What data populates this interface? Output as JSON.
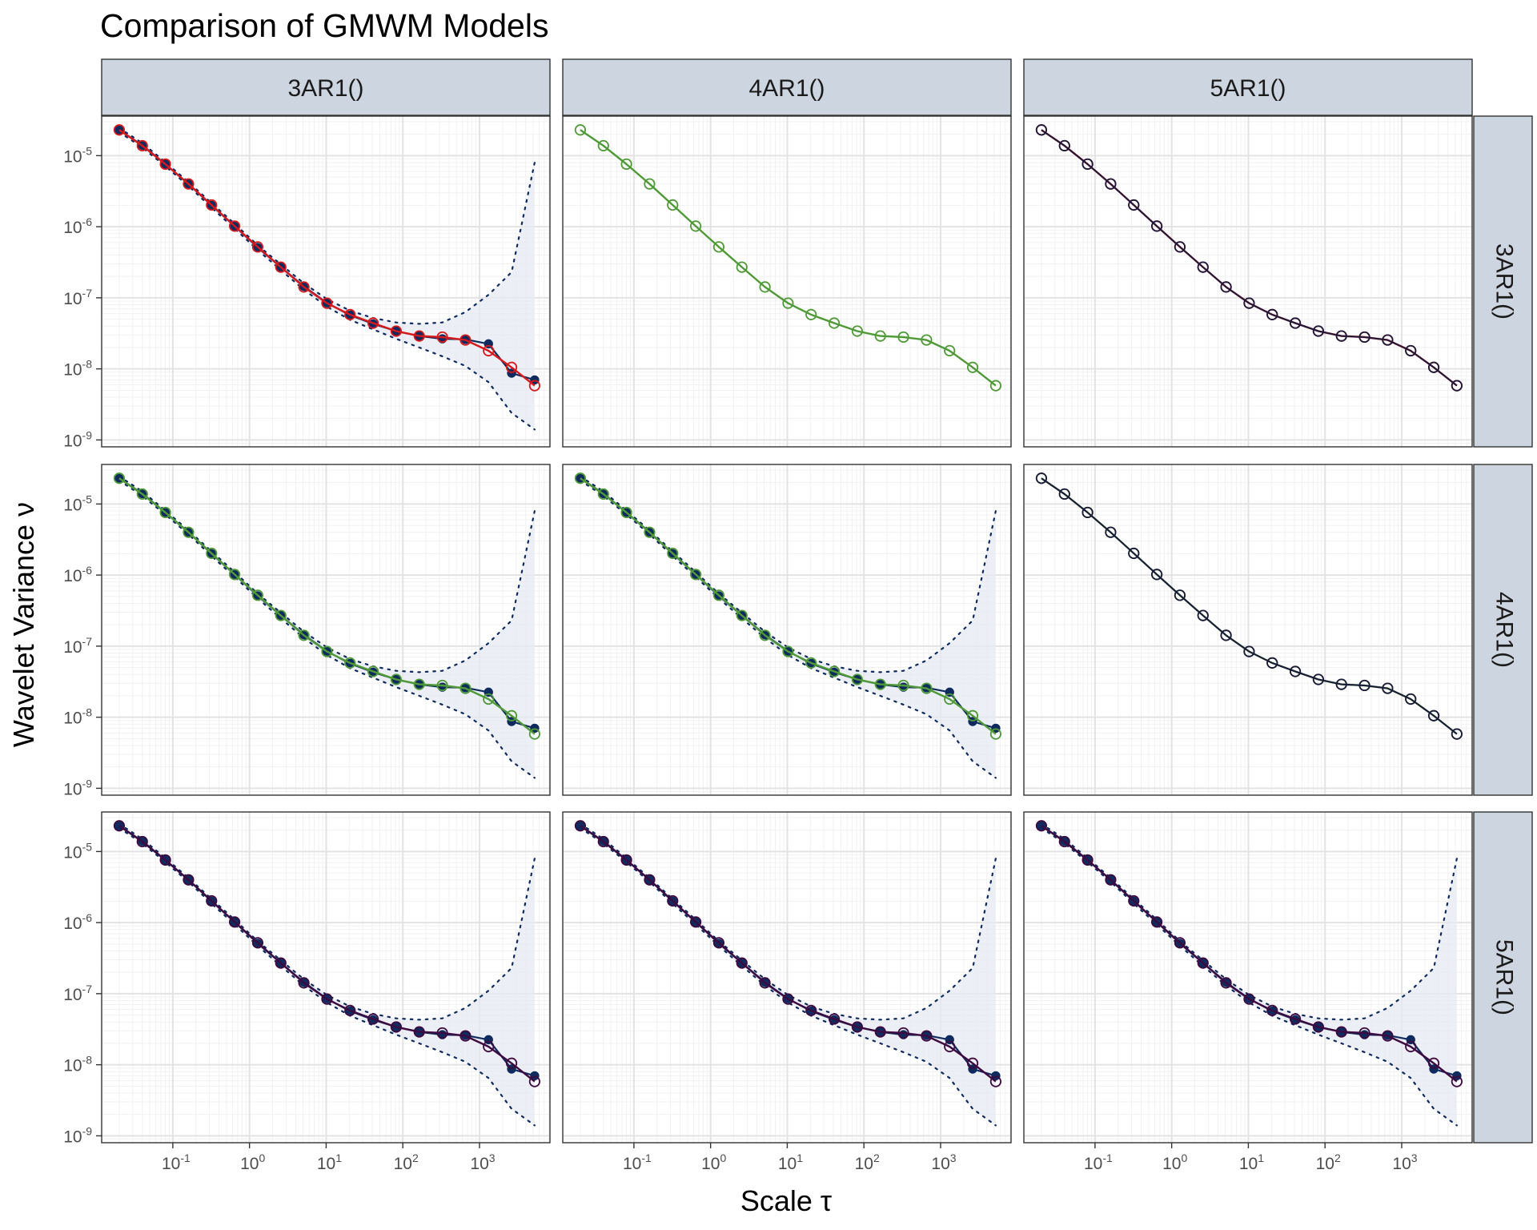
{
  "chart_data": {
    "type": "line",
    "title": "Comparison of GMWM Models",
    "xlabel": "Scale τ",
    "ylabel": "Wavelet Variance ν",
    "x_scale": "log10",
    "y_scale": "log10",
    "xlim": [
      0.0118,
      8300
    ],
    "ylim": [
      8e-10,
      3.6e-05
    ],
    "x_ticks": [
      0.1,
      1,
      10,
      100,
      1000
    ],
    "x_tick_labels": [
      {
        "base": "10",
        "exp": "-1"
      },
      {
        "base": "10",
        "exp": "0"
      },
      {
        "base": "10",
        "exp": "1"
      },
      {
        "base": "10",
        "exp": "2"
      },
      {
        "base": "10",
        "exp": "3"
      }
    ],
    "y_ticks": [
      1e-09,
      1e-08,
      1e-07,
      1e-06,
      1e-05
    ],
    "y_tick_labels": [
      {
        "base": "10",
        "exp": "-9"
      },
      {
        "base": "10",
        "exp": "-8"
      },
      {
        "base": "10",
        "exp": "-7"
      },
      {
        "base": "10",
        "exp": "-6"
      },
      {
        "base": "10",
        "exp": "-5"
      }
    ],
    "grid": true,
    "legend": "none",
    "column_labels": [
      "3AR1()",
      "4AR1()",
      "5AR1()"
    ],
    "row_labels": [
      "3AR1()",
      "4AR1()",
      "5AR1()"
    ],
    "scales": [
      0.02,
      0.04,
      0.08,
      0.16,
      0.32,
      0.64,
      1.28,
      2.56,
      5.12,
      10.24,
      20.48,
      40.96,
      81.92,
      163.84,
      327.68,
      655.36,
      1310.72,
      2621.44,
      5242.88
    ],
    "empirical_wv": [
      2.3e-05,
      1.4e-05,
      7.6e-06,
      4e-06,
      2e-06,
      1.02e-06,
      5.1e-07,
      2.7e-07,
      1.45e-07,
      8.5e-08,
      5.7e-08,
      4.3e-08,
      3.4e-08,
      2.9e-08,
      2.65e-08,
      2.6e-08,
      2.25e-08,
      8.7e-09,
      7e-09
    ],
    "ci_upper": [
      2.45e-05,
      1.5e-05,
      8.1e-06,
      4.25e-06,
      2.15e-06,
      1.1e-06,
      5.5e-07,
      2.95e-07,
      1.6e-07,
      9.6e-08,
      6.6e-08,
      5.2e-08,
      4.5e-08,
      4.3e-08,
      4.5e-08,
      6.3e-08,
      1.1e-07,
      2.3e-07,
      8e-06
    ],
    "ci_lower": [
      2.15e-05,
      1.3e-05,
      7.1e-06,
      3.75e-06,
      1.85e-06,
      9.4e-07,
      4.7e-07,
      2.45e-07,
      1.3e-07,
      7.5e-08,
      4.9e-08,
      3.6e-08,
      2.65e-08,
      2e-08,
      1.5e-08,
      1.1e-08,
      6.5e-09,
      2.4e-09,
      1.4e-09
    ],
    "implied_wv": [
      2.3e-05,
      1.38e-05,
      7.6e-06,
      4e-06,
      2.02e-06,
      1.02e-06,
      5.2e-07,
      2.7e-07,
      1.42e-07,
      8.4e-08,
      5.8e-08,
      4.4e-08,
      3.4e-08,
      2.9e-08,
      2.8e-08,
      2.55e-08,
      1.8e-08,
      1.05e-08,
      5.8e-09
    ],
    "model_colors": {
      "3AR1()": "#d7191c",
      "4AR1()": "#4f9a37",
      "5AR1()": "#3d0b3f"
    },
    "empirical_color": "#0e2a5e",
    "ci_fill": "#e6eaf2",
    "panels": [
      {
        "row": "3AR1()",
        "col": "3AR1()",
        "content": "empirical+implied",
        "model": "3AR1()"
      },
      {
        "row": "3AR1()",
        "col": "4AR1()",
        "content": "implied",
        "model": "4AR1()"
      },
      {
        "row": "3AR1()",
        "col": "5AR1()",
        "content": "implied-pair",
        "models": [
          "3AR1()",
          "5AR1()"
        ]
      },
      {
        "row": "4AR1()",
        "col": "3AR1()",
        "content": "empirical+implied",
        "model": "4AR1()"
      },
      {
        "row": "4AR1()",
        "col": "4AR1()",
        "content": "empirical+implied",
        "model": "4AR1()"
      },
      {
        "row": "4AR1()",
        "col": "5AR1()",
        "content": "implied-pair",
        "models": [
          "4AR1()",
          "5AR1()"
        ]
      },
      {
        "row": "5AR1()",
        "col": "3AR1()",
        "content": "empirical+implied",
        "model": "5AR1()"
      },
      {
        "row": "5AR1()",
        "col": "4AR1()",
        "content": "empirical+implied",
        "model": "5AR1()"
      },
      {
        "row": "5AR1()",
        "col": "5AR1()",
        "content": "empirical+implied",
        "model": "5AR1()"
      }
    ]
  }
}
